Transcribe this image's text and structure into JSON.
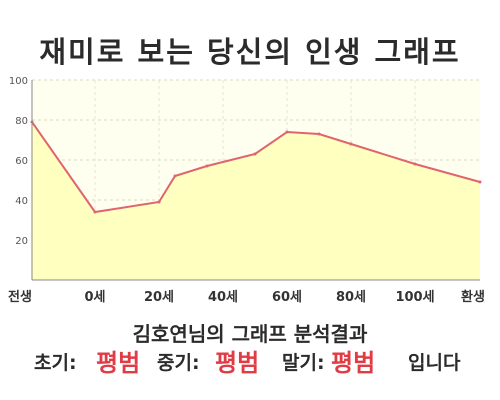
{
  "title": "재미로 보는 당신의 인생 그래프",
  "subtitle": "김호연님의 그래프 분석결과",
  "result": {
    "early_label": "초기:",
    "early_value": "평범",
    "mid_label": "중기:",
    "mid_value": "평범",
    "late_label": "말기:",
    "late_value": "평범",
    "suffix": "입니다"
  },
  "colors": {
    "line": "#e0646e",
    "fill": "#ffffc0",
    "plot_bg": "#fffff0",
    "accent": "#e03c46"
  },
  "chart_data": {
    "type": "area",
    "x_ticks": [
      "전생",
      "0세",
      "20세",
      "40세",
      "60세",
      "80세",
      "100세",
      "환생"
    ],
    "y_ticks": [
      "100",
      "80",
      "60",
      "40",
      "20"
    ],
    "ylim": [
      0,
      100
    ],
    "grid": true,
    "series": [
      {
        "values": [
          {
            "x": "전생",
            "y": 79
          },
          {
            "x": "0세",
            "y": 34
          },
          {
            "x": "20세",
            "y": 39
          },
          {
            "x": "25세",
            "y": 52
          },
          {
            "x": "35세",
            "y": 57
          },
          {
            "x": "50세",
            "y": 63
          },
          {
            "x": "60세",
            "y": 74
          },
          {
            "x": "70세",
            "y": 73
          },
          {
            "x": "80세",
            "y": 68
          },
          {
            "x": "100세",
            "y": 58
          },
          {
            "x": "환생",
            "y": 49
          }
        ]
      }
    ]
  }
}
